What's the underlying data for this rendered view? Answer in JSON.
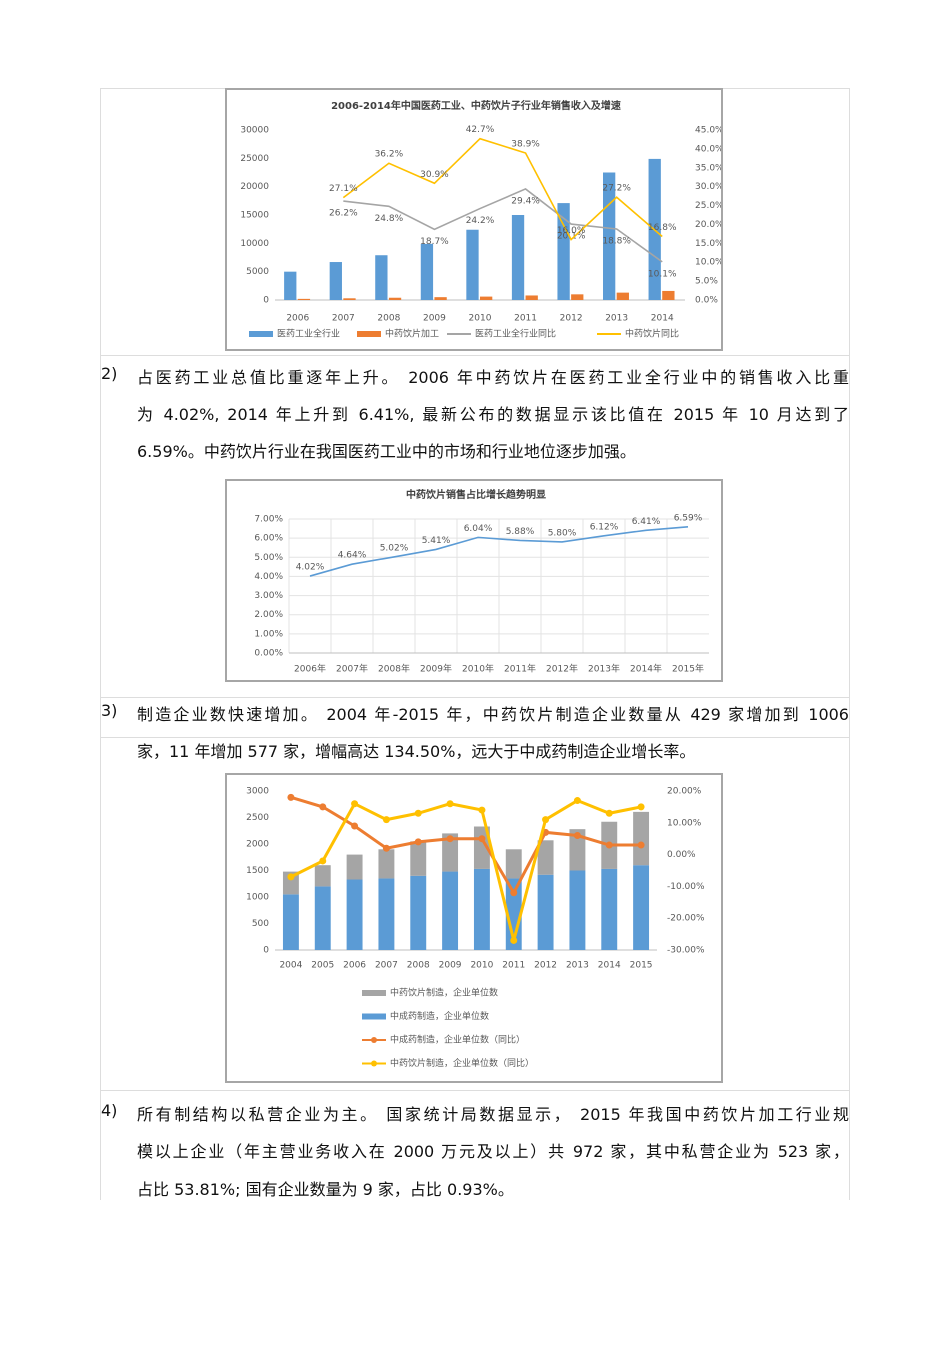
{
  "chart_data": [
    {
      "type": "combo",
      "title": "2006-2014年中国医药工业、中药饮片子行业年销售收入及增速",
      "categories": [
        "2006",
        "2007",
        "2008",
        "2009",
        "2010",
        "2011",
        "2012",
        "2013",
        "2014"
      ],
      "ylim": [
        0,
        30000
      ],
      "yticks": [
        0,
        5000,
        10000,
        15000,
        20000,
        25000,
        30000
      ],
      "y2lim": [
        0,
        45
      ],
      "y2ticks": [
        {
          "value": 0,
          "label": "0.0%"
        },
        {
          "value": 5,
          "label": "5.0%"
        },
        {
          "value": 10,
          "label": "10.0%"
        },
        {
          "value": 15,
          "label": "15.0%"
        },
        {
          "value": 20,
          "label": "20.0%"
        },
        {
          "value": 25,
          "label": "25.0%"
        },
        {
          "value": 30,
          "label": "30.0%"
        },
        {
          "value": 35,
          "label": "35.0%"
        },
        {
          "value": 40,
          "label": "40.0%"
        },
        {
          "value": 45,
          "label": "45.0%"
        }
      ],
      "grid": false,
      "series": [
        {
          "name": "医药工业全行业",
          "kind": "bar",
          "color": "#5b9bd5",
          "values": [
            5000,
            6700,
            7900,
            9900,
            12400,
            15000,
            17100,
            22500,
            24900
          ]
        },
        {
          "name": "中药饮片加工",
          "kind": "bar",
          "color": "#ed7d31",
          "values": [
            200,
            300,
            400,
            500,
            600,
            800,
            1000,
            1300,
            1600
          ]
        },
        {
          "name": "医药工业全行业同比",
          "kind": "line",
          "axis": "y2",
          "color": "#a5a5a5",
          "values": [
            null,
            26.2,
            24.8,
            18.7,
            24.2,
            29.4,
            20.1,
            18.8,
            10.1
          ],
          "value_labels": [
            null,
            "26.2%",
            "24.8%",
            "18.7%",
            "24.2%",
            "29.4%",
            "20.1%",
            "18.8%",
            "10.1%"
          ]
        },
        {
          "name": "中药饮片同比",
          "kind": "line",
          "axis": "y2",
          "color": "#ffc000",
          "values": [
            null,
            27.1,
            36.2,
            30.9,
            42.7,
            38.9,
            16.0,
            27.2,
            16.8
          ],
          "value_labels": [
            null,
            "27.1%",
            "36.2%",
            "30.9%",
            "42.7%",
            "38.9%",
            "16.0%",
            "27.2%",
            "16.8%"
          ]
        }
      ]
    },
    {
      "type": "line",
      "title": "中药饮片销售占比增长趋势明显",
      "categories": [
        "2006年",
        "2007年",
        "2008年",
        "2009年",
        "2010年",
        "2011年",
        "2012年",
        "2013年",
        "2014年",
        "2015年"
      ],
      "values": [
        4.02,
        4.64,
        5.02,
        5.41,
        6.04,
        5.88,
        5.8,
        6.12,
        6.41,
        6.59
      ],
      "value_labels": [
        "4.02%",
        "4.64%",
        "5.02%",
        "5.41%",
        "6.04%",
        "5.88%",
        "5.80%",
        "6.12%",
        "6.41%",
        "6.59%"
      ],
      "color": "#5b9bd5",
      "grid": true,
      "ylim": [
        0,
        7
      ],
      "yticks": [
        {
          "value": 0,
          "label": "0.00%"
        },
        {
          "value": 1,
          "label": "1.00%"
        },
        {
          "value": 2,
          "label": "2.00%"
        },
        {
          "value": 3,
          "label": "3.00%"
        },
        {
          "value": 4,
          "label": "4.00%"
        },
        {
          "value": 5,
          "label": "5.00%"
        },
        {
          "value": 6,
          "label": "6.00%"
        },
        {
          "value": 7,
          "label": "7.00%"
        }
      ]
    },
    {
      "type": "combo",
      "stacked": true,
      "markers": true,
      "grid": false,
      "categories": [
        "2004",
        "2005",
        "2006",
        "2007",
        "2008",
        "2009",
        "2010",
        "2011",
        "2012",
        "2013",
        "2014",
        "2015"
      ],
      "ylim": [
        0,
        3000
      ],
      "yticks": [
        0,
        500,
        1000,
        1500,
        2000,
        2500,
        3000
      ],
      "y2lim": [
        -30,
        20
      ],
      "y2ticks": [
        {
          "value": -30,
          "label": "-30.00%"
        },
        {
          "value": -20,
          "label": "-20.00%"
        },
        {
          "value": -10,
          "label": "-10.00%"
        },
        {
          "value": 0,
          "label": "0.00%"
        },
        {
          "value": 10,
          "label": "10.00%"
        },
        {
          "value": 20,
          "label": "20.00%"
        }
      ],
      "series": [
        {
          "name": "中药饮片制造，企业单位数",
          "kind": "bar",
          "color": "#a5a5a5",
          "values": [
            429,
            400,
            470,
            550,
            650,
            720,
            800,
            550,
            650,
            780,
            890,
            1006
          ]
        },
        {
          "name": "中成药制造，企业单位数",
          "kind": "bar",
          "color": "#5b9bd5",
          "values": [
            1050,
            1200,
            1330,
            1350,
            1400,
            1480,
            1530,
            1350,
            1420,
            1500,
            1530,
            1600
          ]
        },
        {
          "name": "中成药制造，企业单位数（同比）",
          "kind": "line",
          "axis": "y2",
          "color": "#ed7d31",
          "values": [
            18,
            15,
            9,
            2,
            4,
            5,
            5,
            -12,
            7,
            6,
            3,
            3
          ]
        },
        {
          "name": "中药饮片制造，企业单位数（同比）",
          "kind": "line",
          "axis": "y2",
          "color": "#ffc000",
          "values": [
            -7,
            -2,
            16,
            11,
            13,
            16,
            14,
            -27,
            11,
            17,
            13,
            15
          ]
        }
      ]
    }
  ],
  "paragraphs": [
    {
      "number": "2)",
      "lines": [
        "占医药工业总值比重逐年上升。 2006 年中药饮片在医药工业全行业中的销售收入比重",
        "为 4.02%, 2014 年上升到 6.41%, 最新公布的数据显示该比值在 2015 年 10 月达到了",
        "6.59%。中药饮片行业在我国医药工业中的市场和行业地位逐步加强。"
      ]
    },
    {
      "number": "3)",
      "lines": [
        "制造企业数快速增加。 2004 年-2015 年，中药饮片制造企业数量从 429 家增加到 1006",
        "家，11 年增加 577 家，增幅高达 134.50%，远大于中成药制造企业增长率。"
      ]
    },
    {
      "number": "4)",
      "lines": [
        "所有制结构以私营企业为主。 国家统计局数据显示， 2015 年我国中药饮片加工行业规",
        "模以上企业（年主营业务收入在 2000 万元及以上）共 972 家，其中私营企业为 523 家，",
        "占比 53.81%; 国有企业数量为 9 家，占比 0.93%。"
      ]
    }
  ]
}
